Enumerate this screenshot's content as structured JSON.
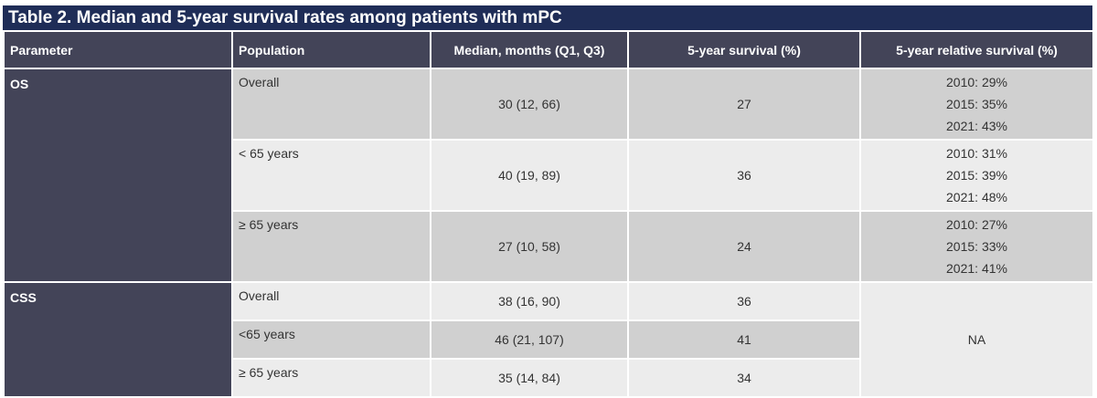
{
  "title": "Table 2. Median and 5-year survival rates among patients with mPC",
  "columns": [
    "Parameter",
    "Population",
    "Median, months (Q1, Q3)",
    "5-year survival (%)",
    "5-year relative survival (%)"
  ],
  "os": {
    "parameter": "OS",
    "rows": [
      {
        "population": "Overall",
        "median": "30 (12, 66)",
        "survival": "27",
        "relative": [
          "2010: 29%",
          "2015: 35%",
          "2021: 43%"
        ]
      },
      {
        "population": "< 65 years",
        "median": "40 (19, 89)",
        "survival": "36",
        "relative": [
          "2010: 31%",
          "2015: 39%",
          "2021: 48%"
        ]
      },
      {
        "population": "≥ 65 years",
        "median": "27 (10, 58)",
        "survival": "24",
        "relative": [
          "2010: 27%",
          "2015: 33%",
          "2021: 41%"
        ]
      }
    ]
  },
  "css": {
    "parameter": "CSS",
    "relative": "NA",
    "rows": [
      {
        "population": "Overall",
        "median": "38 (16, 90)",
        "survival": "36"
      },
      {
        "population": "<65 years",
        "median": "46 (21, 107)",
        "survival": "41"
      },
      {
        "population": "≥ 65 years",
        "median": "35 (14, 84)",
        "survival": "34"
      }
    ]
  },
  "colors": {
    "title_bg": "#1f2d57",
    "header_bg": "#434458",
    "row_dark": "#d0d0d0",
    "row_light": "#ececec"
  }
}
